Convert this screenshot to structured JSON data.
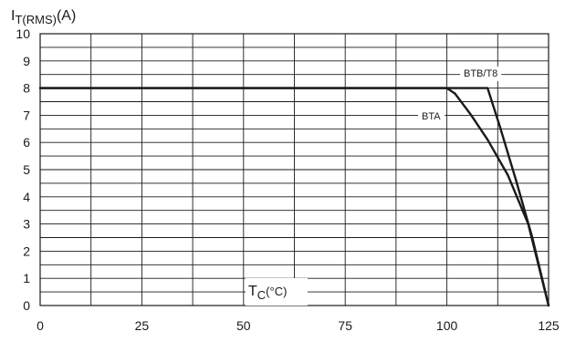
{
  "chart_data": {
    "type": "line",
    "ylabel": {
      "main": "I",
      "sub": "T(RMS)",
      "unit": "(A)"
    },
    "xlabel": {
      "main": "T",
      "sub": "C",
      "unit": "(°C)"
    },
    "xlim": [
      0,
      125
    ],
    "ylim": [
      0,
      10
    ],
    "x_ticks": [
      "0",
      "25",
      "50",
      "75",
      "100",
      "125"
    ],
    "y_ticks": [
      "0",
      "1",
      "2",
      "3",
      "4",
      "5",
      "6",
      "7",
      "8",
      "9",
      "10"
    ],
    "grid": true,
    "series": [
      {
        "name": "BTA",
        "x": [
          0,
          100,
          102,
          106,
          110,
          115,
          120,
          125
        ],
        "y": [
          8,
          8,
          7.8,
          7.0,
          6.1,
          4.8,
          3.0,
          0
        ]
      },
      {
        "name": "BTB/T8",
        "x": [
          0,
          110,
          113,
          117,
          121,
          125
        ],
        "y": [
          8,
          8,
          6.6,
          4.6,
          2.5,
          0
        ]
      }
    ]
  }
}
